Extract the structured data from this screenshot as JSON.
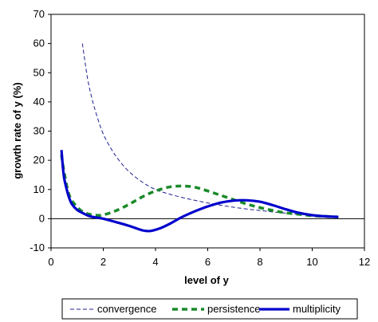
{
  "chart_data": {
    "type": "line",
    "title": "",
    "xlabel": "level of y",
    "ylabel": "growth rate of y (%)",
    "xlim": [
      0,
      12
    ],
    "ylim": [
      -10,
      70
    ],
    "x_ticks": [
      0,
      2,
      4,
      6,
      8,
      10,
      12
    ],
    "y_ticks": [
      -10,
      0,
      10,
      20,
      30,
      40,
      50,
      60,
      70
    ],
    "grid": false,
    "legend_position": "bottom",
    "series": [
      {
        "name": "convergence",
        "color": "#1f1f8f",
        "style": "thin-dashed",
        "x": [
          1.2,
          1.4,
          1.6,
          1.8,
          2.0,
          2.3,
          2.6,
          3.0,
          3.5,
          4.0,
          4.5,
          5.0,
          5.5,
          6.0,
          6.5,
          7.0,
          7.5,
          8.0,
          8.5,
          9.0,
          9.5,
          10.0,
          10.5,
          11.0
        ],
        "y": [
          60,
          48,
          40,
          34,
          29,
          24,
          20,
          16,
          12.5,
          10,
          8.5,
          7.3,
          6.3,
          5.4,
          4.6,
          3.9,
          3.3,
          2.8,
          2.3,
          1.9,
          1.5,
          1.2,
          0.9,
          0.7
        ]
      },
      {
        "name": "persistence",
        "color": "#1a8a2a",
        "style": "thick-dashed",
        "x": [
          0.4,
          0.5,
          0.7,
          1.0,
          1.3,
          1.7,
          2.0,
          2.5,
          3.0,
          3.5,
          4.0,
          4.5,
          5.0,
          5.5,
          6.0,
          6.5,
          7.0,
          7.5,
          8.0,
          8.5,
          9.0,
          9.5,
          10.0,
          10.5,
          11.0
        ],
        "y": [
          22,
          16,
          8,
          4,
          2,
          1.2,
          1.3,
          2.8,
          5,
          7.5,
          9.5,
          10.8,
          11.2,
          10.8,
          9.5,
          8,
          6.5,
          5,
          3.8,
          2.8,
          2,
          1.5,
          1,
          0.8,
          0.6
        ]
      },
      {
        "name": "multiplicity",
        "color": "#0000cc",
        "style": "thick-solid",
        "x": [
          0.4,
          0.45,
          0.5,
          0.6,
          0.7,
          0.8,
          1.0,
          1.2,
          1.5,
          2.0,
          2.5,
          3.0,
          3.5,
          3.8,
          4.2,
          4.6,
          5.0,
          5.5,
          6.0,
          6.5,
          7.0,
          7.5,
          8.0,
          8.5,
          9.0,
          9.5,
          10.0,
          10.5,
          11.0
        ],
        "y": [
          23.5,
          18,
          14,
          10,
          7,
          5,
          3,
          2,
          0.8,
          0,
          -1.2,
          -2.5,
          -4,
          -4.2,
          -3.2,
          -1.5,
          0.5,
          2.5,
          4.2,
          5.5,
          6.2,
          6.3,
          5.8,
          4.6,
          3.2,
          2,
          1.2,
          0.8,
          0.6
        ]
      }
    ]
  }
}
